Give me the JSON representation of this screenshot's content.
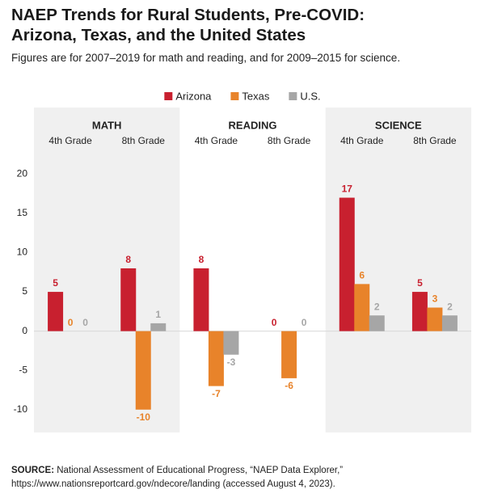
{
  "chart_data": {
    "type": "bar",
    "title": "NAEP Trends for Rural Students, Pre-COVID: Arizona, Texas, and the United States",
    "subtitle": "Figures are for 2007–2019 for math and reading, and for 2009–2015 for science.",
    "groups": [
      "MATH",
      "READING",
      "SCIENCE"
    ],
    "categories": [
      "4th Grade",
      "8th Grade",
      "4th Grade",
      "8th Grade",
      "4th Grade",
      "8th Grade"
    ],
    "series": [
      {
        "name": "Arizona",
        "color": "#c8202f",
        "values": [
          5,
          8,
          8,
          0,
          17,
          5
        ]
      },
      {
        "name": "Texas",
        "color": "#e8832a",
        "values": [
          0,
          -10,
          -7,
          -6,
          6,
          3
        ]
      },
      {
        "name": "U.S.",
        "color": "#a6a6a6",
        "values": [
          0,
          1,
          -3,
          0,
          2,
          2
        ]
      }
    ],
    "ylim": [
      -12.5,
      22
    ],
    "yticks": [
      20,
      15,
      10,
      5,
      0,
      -5,
      -10
    ],
    "grid": false,
    "legend": "top",
    "source_label": "SOURCE:",
    "source": "National Assessment of Educational Progress, “NAEP Data Explorer,” https://www.nationsreportcard.gov/ndecore/landing (accessed August 4, 2023)."
  }
}
